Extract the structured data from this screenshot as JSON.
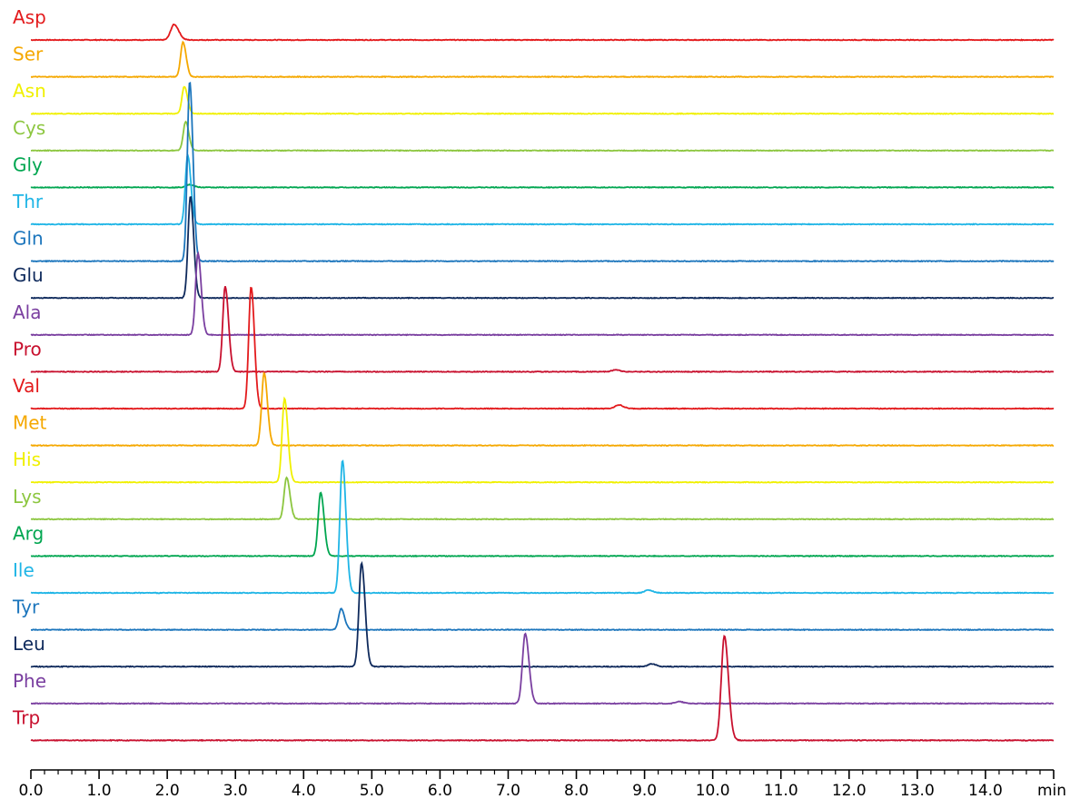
{
  "chart_data": {
    "type": "line",
    "title": "",
    "xlabel": "min",
    "ylabel": "",
    "xlim": [
      0.0,
      15.0
    ],
    "x_ticks": [
      "0.0",
      "1.0",
      "2.0",
      "3.0",
      "4.0",
      "5.0",
      "6.0",
      "7.0",
      "8.0",
      "9.0",
      "10.0",
      "11.0",
      "12.0",
      "13.0",
      "14.0"
    ],
    "x_unit": "min",
    "minor_tick_interval": 0.2,
    "grid": false,
    "legend": "inline labels at left of each trace",
    "series": [
      {
        "name": "Asp",
        "color": "#e31a1c",
        "peaks": [
          {
            "x": 2.1,
            "h": 17
          }
        ]
      },
      {
        "name": "Ser",
        "color": "#f5a800",
        "peaks": [
          {
            "x": 2.23,
            "h": 38
          }
        ]
      },
      {
        "name": "Asn",
        "color": "#f0f000",
        "peaks": [
          {
            "x": 2.25,
            "h": 30
          }
        ]
      },
      {
        "name": "Cys",
        "color": "#8cc63f",
        "peaks": [
          {
            "x": 2.27,
            "h": 32
          }
        ]
      },
      {
        "name": "Gly",
        "color": "#00a650",
        "peaks": [
          {
            "x": 2.32,
            "h": 3
          }
        ]
      },
      {
        "name": "Thr",
        "color": "#1fb5e6",
        "peaks": [
          {
            "x": 2.3,
            "h": 76
          }
        ]
      },
      {
        "name": "Gln",
        "color": "#1b75bc",
        "peaks": [
          {
            "x": 2.33,
            "h": 198
          }
        ]
      },
      {
        "name": "Glu",
        "color": "#0f2a5c",
        "peaks": [
          {
            "x": 2.34,
            "h": 112
          }
        ]
      },
      {
        "name": "Ala",
        "color": "#7a3fa0",
        "peaks": [
          {
            "x": 2.45,
            "h": 90
          }
        ]
      },
      {
        "name": "Pro",
        "color": "#c8102e",
        "peaks": [
          {
            "x": 2.85,
            "h": 94
          },
          {
            "x": 8.57,
            "h": 2
          }
        ]
      },
      {
        "name": "Val",
        "color": "#e31a1c",
        "peaks": [
          {
            "x": 3.23,
            "h": 134
          },
          {
            "x": 8.62,
            "h": 4
          }
        ]
      },
      {
        "name": "Met",
        "color": "#f5a800",
        "peaks": [
          {
            "x": 3.42,
            "h": 80
          }
        ]
      },
      {
        "name": "His",
        "color": "#f0f000",
        "peaks": [
          {
            "x": 3.72,
            "h": 92
          }
        ]
      },
      {
        "name": "Lys",
        "color": "#8cc63f",
        "peaks": [
          {
            "x": 3.75,
            "h": 46
          }
        ]
      },
      {
        "name": "Arg",
        "color": "#00a650",
        "peaks": [
          {
            "x": 4.25,
            "h": 70
          }
        ]
      },
      {
        "name": "Ile",
        "color": "#1fb5e6",
        "peaks": [
          {
            "x": 4.57,
            "h": 146
          },
          {
            "x": 9.05,
            "h": 3
          }
        ]
      },
      {
        "name": "Tyr",
        "color": "#1b75bc",
        "peaks": [
          {
            "x": 4.55,
            "h": 23
          }
        ]
      },
      {
        "name": "Leu",
        "color": "#0f2a5c",
        "peaks": [
          {
            "x": 4.85,
            "h": 114
          },
          {
            "x": 9.1,
            "h": 3
          }
        ]
      },
      {
        "name": "Phe",
        "color": "#7a3fa0",
        "peaks": [
          {
            "x": 7.25,
            "h": 77
          },
          {
            "x": 9.5,
            "h": 2
          }
        ]
      },
      {
        "name": "Trp",
        "color": "#c8102e",
        "peaks": [
          {
            "x": 10.17,
            "h": 115
          }
        ]
      }
    ]
  }
}
